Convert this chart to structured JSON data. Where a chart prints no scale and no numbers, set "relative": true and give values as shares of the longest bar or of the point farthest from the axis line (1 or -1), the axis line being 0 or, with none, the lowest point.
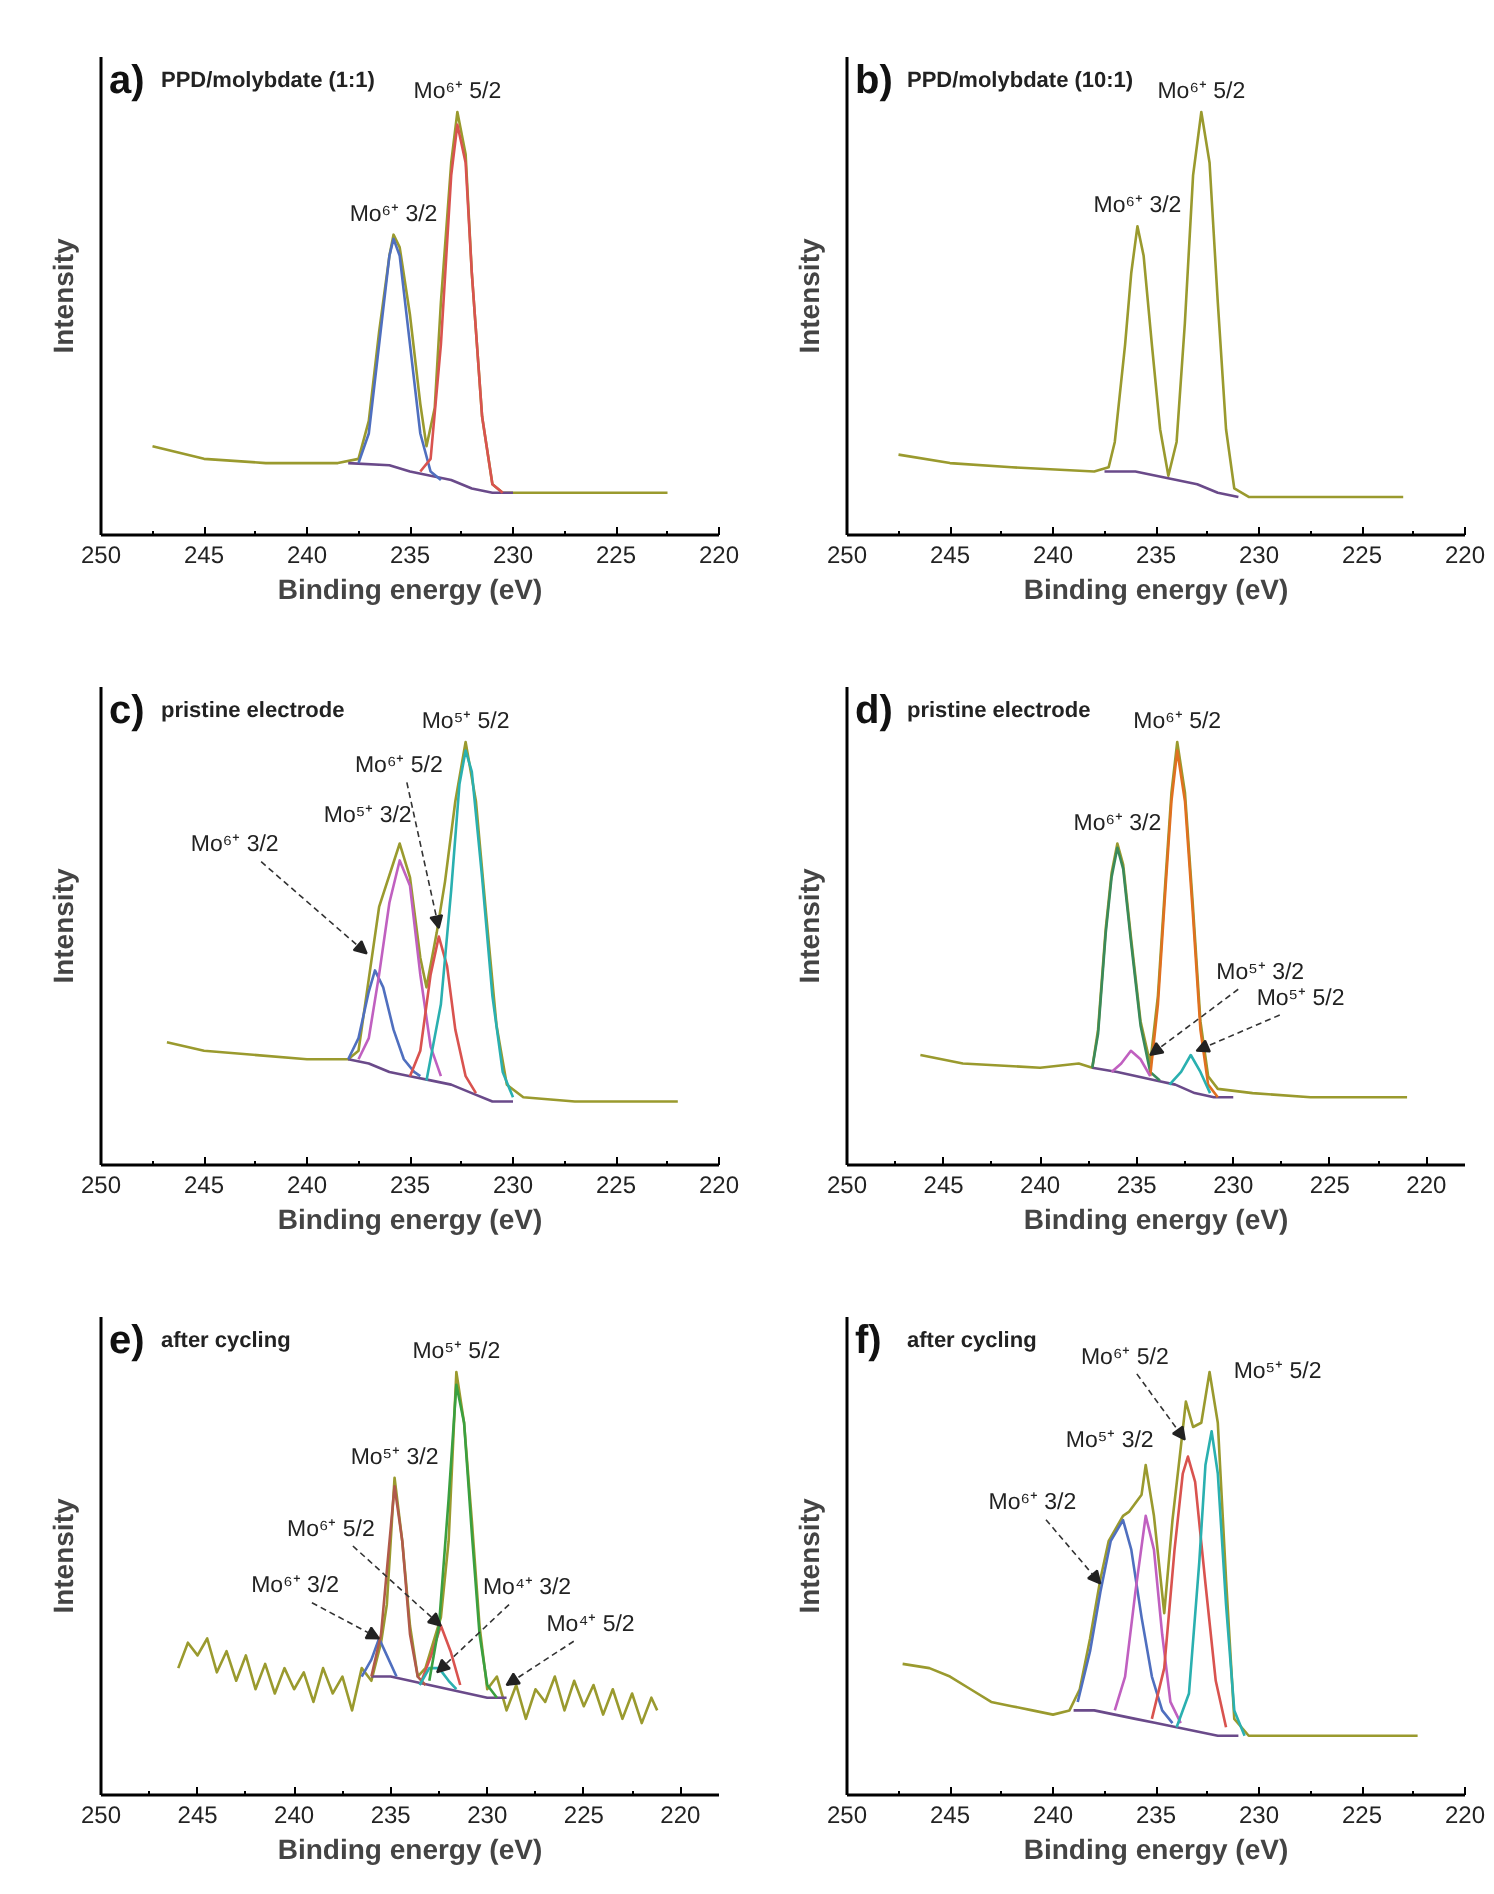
{
  "chart_data": [
    {
      "type": "line",
      "title": "a)",
      "subtitle": "PPD/molybdate (1:1)",
      "xlabel": "Binding energy (eV)",
      "ylabel": "Intensity",
      "xlim": [
        250,
        220
      ],
      "xticks": [
        250,
        245,
        240,
        235,
        230,
        225,
        220
      ],
      "relative": true,
      "tick_labels": "x",
      "series": [
        {
          "color": "#9a9a2e",
          "x": [
            247.5,
            245,
            242,
            238.5,
            237.5,
            237,
            236.5,
            236,
            235.8,
            235.5,
            235,
            234.5,
            234.2,
            233.8,
            233.5,
            233,
            232.7,
            232.3,
            232,
            231.5,
            231,
            230.5,
            228,
            225,
            222.5
          ],
          "values": [
            0.21,
            0.18,
            0.17,
            0.17,
            0.18,
            0.27,
            0.48,
            0.66,
            0.71,
            0.68,
            0.52,
            0.31,
            0.21,
            0.3,
            0.55,
            0.88,
            1.0,
            0.9,
            0.62,
            0.28,
            0.12,
            0.1,
            0.1,
            0.1,
            0.1
          ]
        },
        {
          "color": "#6a4a8a",
          "x": [
            238,
            236,
            235,
            234,
            233,
            232,
            231,
            230
          ],
          "values": [
            0.17,
            0.165,
            0.15,
            0.14,
            0.13,
            0.11,
            0.1,
            0.1
          ]
        },
        {
          "color": "#4f6fbf",
          "x": [
            237.5,
            237,
            236.5,
            236,
            235.8,
            235.5,
            235,
            234.5,
            234,
            233.5
          ],
          "values": [
            0.17,
            0.24,
            0.45,
            0.66,
            0.7,
            0.66,
            0.45,
            0.24,
            0.15,
            0.13
          ]
        },
        {
          "color": "#d9534f",
          "x": [
            234.5,
            234,
            233.5,
            233,
            232.7,
            232.3,
            232,
            231.5,
            231,
            230.5
          ],
          "values": [
            0.15,
            0.18,
            0.45,
            0.85,
            0.97,
            0.88,
            0.62,
            0.28,
            0.12,
            0.1
          ]
        }
      ],
      "annotations": [
        {
          "text": "Mo⁶⁺ 5/2",
          "x": 232.7,
          "y": 1.0
        },
        {
          "text": "Mo⁶⁺ 3/2",
          "x": 235.8,
          "y": 0.71
        }
      ]
    },
    {
      "type": "line",
      "title": "b)",
      "subtitle": "PPD/molybdate (10:1)",
      "xlabel": "Binding energy (eV)",
      "ylabel": "Intensity",
      "xlim": [
        250,
        220
      ],
      "xticks": [
        250,
        245,
        240,
        235,
        230,
        225,
        220
      ],
      "relative": true,
      "tick_labels": "x",
      "series": [
        {
          "color": "#9a9a2e",
          "x": [
            247.5,
            245,
            242,
            238,
            237.3,
            237,
            236.5,
            236.2,
            235.9,
            235.6,
            235.2,
            234.8,
            234.4,
            234,
            233.6,
            233.2,
            232.8,
            232.4,
            232,
            231.6,
            231.2,
            230.5,
            228,
            225,
            223
          ],
          "values": [
            0.19,
            0.17,
            0.16,
            0.15,
            0.16,
            0.22,
            0.45,
            0.62,
            0.73,
            0.66,
            0.45,
            0.25,
            0.14,
            0.22,
            0.5,
            0.85,
            1.0,
            0.88,
            0.55,
            0.25,
            0.11,
            0.09,
            0.09,
            0.09,
            0.09
          ]
        },
        {
          "color": "#6a4a8a",
          "x": [
            237.5,
            236,
            235,
            234,
            233,
            232,
            231
          ],
          "values": [
            0.15,
            0.15,
            0.14,
            0.13,
            0.12,
            0.1,
            0.09
          ]
        }
      ],
      "annotations": [
        {
          "text": "Mo⁶⁺ 5/2",
          "x": 232.8,
          "y": 1.0
        },
        {
          "text": "Mo⁶⁺ 3/2",
          "x": 235.9,
          "y": 0.73
        }
      ]
    },
    {
      "type": "line",
      "title": "c)",
      "subtitle": "pristine electrode",
      "xlabel": "Binding energy (eV)",
      "ylabel": "Intensity",
      "xlim": [
        250,
        220
      ],
      "xticks": [
        250,
        245,
        240,
        235,
        230,
        225,
        220
      ],
      "relative": true,
      "tick_labels": "x",
      "series": [
        {
          "color": "#9a9a2e",
          "x": [
            246.8,
            245,
            240,
            238,
            237.5,
            237,
            236.5,
            235.5,
            235,
            234.5,
            234.2,
            233.7,
            233.3,
            232.8,
            232.3,
            231.8,
            231.3,
            230.8,
            230.3,
            229.5,
            227,
            225,
            222
          ],
          "values": [
            0.29,
            0.27,
            0.25,
            0.25,
            0.27,
            0.44,
            0.61,
            0.76,
            0.68,
            0.49,
            0.42,
            0.55,
            0.67,
            0.86,
            1.0,
            0.86,
            0.59,
            0.33,
            0.19,
            0.16,
            0.15,
            0.15,
            0.15
          ]
        },
        {
          "color": "#6a4a8a",
          "x": [
            238,
            237,
            236,
            235,
            234,
            233,
            232,
            231,
            230
          ],
          "values": [
            0.25,
            0.24,
            0.22,
            0.21,
            0.2,
            0.19,
            0.17,
            0.15,
            0.15
          ]
        },
        {
          "color": "#4f6fbf",
          "x": [
            238,
            237.5,
            237,
            236.7,
            236.3,
            235.8,
            235.3,
            234.8,
            234.5
          ],
          "values": [
            0.25,
            0.3,
            0.41,
            0.46,
            0.42,
            0.32,
            0.25,
            0.22,
            0.21
          ]
        },
        {
          "color": "#c060c0",
          "x": [
            237.5,
            237,
            236.5,
            236,
            235.5,
            235,
            234.5,
            234,
            233.5
          ],
          "values": [
            0.25,
            0.3,
            0.45,
            0.62,
            0.72,
            0.66,
            0.45,
            0.28,
            0.21
          ]
        },
        {
          "color": "#d9534f",
          "x": [
            235,
            234.5,
            234,
            233.6,
            233.2,
            232.8,
            232.3,
            231.8
          ],
          "values": [
            0.21,
            0.27,
            0.45,
            0.54,
            0.47,
            0.32,
            0.21,
            0.17
          ]
        },
        {
          "color": "#2ab0b0",
          "x": [
            234.2,
            233.5,
            233,
            232.6,
            232.3,
            232,
            231.5,
            231,
            230.5,
            230
          ],
          "values": [
            0.2,
            0.38,
            0.65,
            0.9,
            0.98,
            0.93,
            0.68,
            0.4,
            0.22,
            0.16
          ]
        }
      ],
      "annotations": [
        {
          "text": "Mo⁵⁺ 5/2",
          "x": 232.3,
          "y": 1.0
        },
        {
          "text": "Mo⁶⁺ 5/2",
          "x": 233.6,
          "y": 0.56
        },
        {
          "text": "Mo⁵⁺ 3/2",
          "x": 235.5,
          "y": 0.76
        },
        {
          "text": "Mo⁶⁺ 3/2",
          "x": 237.1,
          "y": 0.5
        }
      ]
    },
    {
      "type": "line",
      "title": "d)",
      "subtitle": "pristine electrode",
      "xlabel": "Binding energy (eV)",
      "ylabel": "Intensity",
      "xlim": [
        250,
        218
      ],
      "xticks": [
        250,
        245,
        240,
        235,
        230,
        225,
        220
      ],
      "relative": true,
      "tick_labels": "x",
      "series": [
        {
          "color": "#9a9a2e",
          "x": [
            246.2,
            244,
            240,
            238,
            237.3,
            237,
            236.6,
            236.3,
            236,
            235.7,
            235.3,
            234.8,
            234.3,
            233.9,
            233.5,
            233.2,
            232.9,
            232.5,
            232.1,
            231.7,
            231.3,
            230.8,
            229,
            226,
            223,
            221
          ],
          "values": [
            0.26,
            0.24,
            0.23,
            0.24,
            0.23,
            0.32,
            0.56,
            0.69,
            0.76,
            0.71,
            0.54,
            0.34,
            0.24,
            0.4,
            0.68,
            0.88,
            1.0,
            0.88,
            0.62,
            0.34,
            0.21,
            0.18,
            0.17,
            0.16,
            0.16,
            0.16
          ]
        },
        {
          "color": "#6a4a8a",
          "x": [
            237.3,
            236,
            235,
            234,
            233,
            232,
            231,
            230
          ],
          "values": [
            0.23,
            0.22,
            0.21,
            0.2,
            0.19,
            0.17,
            0.16,
            0.16
          ]
        },
        {
          "color": "#3a8a5a",
          "x": [
            237.3,
            237,
            236.6,
            236.3,
            236,
            235.7,
            235.3,
            234.8,
            234.3,
            233.8
          ],
          "values": [
            0.23,
            0.31,
            0.55,
            0.68,
            0.75,
            0.7,
            0.53,
            0.33,
            0.22,
            0.2
          ]
        },
        {
          "color": "#e07020",
          "x": [
            234.3,
            233.9,
            233.5,
            233.2,
            232.9,
            232.5,
            232.1,
            231.7,
            231.3,
            230.8
          ],
          "values": [
            0.21,
            0.38,
            0.66,
            0.86,
            0.98,
            0.86,
            0.6,
            0.32,
            0.19,
            0.16
          ]
        },
        {
          "color": "#c060c0",
          "x": [
            236.3,
            235.8,
            235.3,
            234.8,
            234.3
          ],
          "values": [
            0.22,
            0.24,
            0.27,
            0.25,
            0.21
          ]
        },
        {
          "color": "#2ab0b0",
          "x": [
            233.3,
            232.7,
            232.2,
            231.7,
            231.2
          ],
          "values": [
            0.19,
            0.22,
            0.26,
            0.22,
            0.17
          ]
        }
      ],
      "annotations": [
        {
          "text": "Mo⁶⁺ 5/2",
          "x": 232.9,
          "y": 1.0
        },
        {
          "text": "Mo⁶⁺ 3/2",
          "x": 236.0,
          "y": 0.76
        },
        {
          "text": "Mo⁵⁺ 3/2",
          "x": 234.3,
          "y": 0.26
        },
        {
          "text": "Mo⁵⁺ 5/2",
          "x": 231.9,
          "y": 0.27
        }
      ]
    },
    {
      "type": "line",
      "title": "e)",
      "subtitle": "after cycling",
      "xlabel": "Binding energy (eV)",
      "ylabel": "Intensity",
      "xlim": [
        250,
        218
      ],
      "xticks": [
        250,
        245,
        240,
        235,
        230,
        225,
        220
      ],
      "relative": true,
      "tick_labels": "x",
      "series": [
        {
          "color": "#9a9a2e",
          "x": [
            246,
            245.5,
            245,
            244.5,
            244,
            243.5,
            243,
            242.5,
            242,
            241.5,
            241,
            240.5,
            240,
            239.5,
            239,
            238.5,
            238,
            237.5,
            237,
            236.5,
            236,
            235.5,
            235.2,
            234.8,
            234.4,
            234,
            233.6,
            233.2,
            232.8,
            232.4,
            232,
            231.6,
            231.2,
            230.8,
            230.4,
            230,
            229.5,
            229,
            228.5,
            228,
            227.5,
            227,
            226.5,
            226,
            225.5,
            225,
            224.5,
            224,
            223.5,
            223,
            222.5,
            222,
            221.5,
            221.2
          ],
          "values": [
            0.3,
            0.36,
            0.33,
            0.37,
            0.29,
            0.34,
            0.27,
            0.33,
            0.25,
            0.31,
            0.24,
            0.3,
            0.25,
            0.29,
            0.22,
            0.3,
            0.24,
            0.28,
            0.2,
            0.3,
            0.27,
            0.36,
            0.45,
            0.75,
            0.6,
            0.4,
            0.28,
            0.3,
            0.36,
            0.42,
            0.6,
            1.0,
            0.88,
            0.65,
            0.4,
            0.25,
            0.28,
            0.2,
            0.26,
            0.18,
            0.25,
            0.22,
            0.28,
            0.2,
            0.27,
            0.21,
            0.26,
            0.19,
            0.25,
            0.18,
            0.24,
            0.17,
            0.23,
            0.2
          ]
        },
        {
          "color": "#6a4a8a",
          "x": [
            236,
            235,
            234,
            233,
            232,
            231,
            230,
            229
          ],
          "values": [
            0.28,
            0.28,
            0.27,
            0.26,
            0.25,
            0.24,
            0.23,
            0.23
          ]
        },
        {
          "color": "#4f6fbf",
          "x": [
            236.5,
            236,
            235.6,
            235.2,
            234.7
          ],
          "values": [
            0.28,
            0.32,
            0.37,
            0.33,
            0.28
          ]
        },
        {
          "color": "#b05a4a",
          "x": [
            236,
            235.5,
            235.1,
            234.8,
            234.4,
            234,
            233.6,
            233.2
          ],
          "values": [
            0.28,
            0.38,
            0.58,
            0.73,
            0.6,
            0.38,
            0.28,
            0.26
          ]
        },
        {
          "color": "#d9534f",
          "x": [
            233.4,
            232.9,
            232.4,
            231.9,
            231.4
          ],
          "values": [
            0.27,
            0.33,
            0.4,
            0.34,
            0.26
          ]
        },
        {
          "color": "#2ab0b0",
          "x": [
            233.5,
            233,
            232.5,
            232,
            231.6
          ],
          "values": [
            0.26,
            0.3,
            0.3,
            0.27,
            0.25
          ]
        },
        {
          "color": "#3aa040",
          "x": [
            233,
            232.5,
            232,
            231.6,
            231.2,
            230.8,
            230.4,
            230,
            229.5
          ],
          "values": [
            0.27,
            0.4,
            0.7,
            0.97,
            0.88,
            0.62,
            0.38,
            0.26,
            0.23
          ]
        }
      ],
      "annotations": [
        {
          "text": "Mo⁵⁺ 5/2",
          "x": 231.6,
          "y": 1.0
        },
        {
          "text": "Mo⁵⁺ 3/2",
          "x": 234.8,
          "y": 0.75
        },
        {
          "text": "Mo⁶⁺ 5/2",
          "x": 232.4,
          "y": 0.4
        },
        {
          "text": "Mo⁶⁺ 3/2",
          "x": 235.6,
          "y": 0.37
        },
        {
          "text": "Mo⁴⁺ 3/2",
          "x": 232.6,
          "y": 0.29
        },
        {
          "text": "Mo⁴⁺ 5/2",
          "x": 229.0,
          "y": 0.26
        }
      ]
    },
    {
      "type": "line",
      "title": "f)",
      "subtitle": "after cycling",
      "xlabel": "Binding energy (eV)",
      "ylabel": "Intensity",
      "xlim": [
        250,
        220
      ],
      "xticks": [
        250,
        245,
        240,
        235,
        230,
        225,
        220
      ],
      "relative": true,
      "tick_labels": "x",
      "series": [
        {
          "color": "#9a9a2e",
          "x": [
            247.3,
            246,
            245,
            244,
            243,
            242,
            241,
            240,
            239.2,
            238.7,
            238.2,
            237.7,
            237.3,
            236.6,
            236.3,
            235.7,
            235.5,
            235.1,
            234.6,
            234.2,
            233.8,
            233.55,
            233.2,
            232.8,
            232.4,
            232,
            231.6,
            231.2,
            230.5,
            228,
            225,
            222.3
          ],
          "values": [
            0.31,
            0.3,
            0.28,
            0.25,
            0.22,
            0.21,
            0.2,
            0.19,
            0.2,
            0.25,
            0.37,
            0.51,
            0.6,
            0.66,
            0.67,
            0.71,
            0.78,
            0.66,
            0.43,
            0.65,
            0.82,
            0.93,
            0.87,
            0.88,
            1.0,
            0.88,
            0.51,
            0.18,
            0.14,
            0.14,
            0.14,
            0.14
          ]
        },
        {
          "color": "#6a4a8a",
          "x": [
            239,
            238,
            237,
            236,
            235,
            234,
            233,
            232,
            231
          ],
          "values": [
            0.2,
            0.2,
            0.19,
            0.18,
            0.17,
            0.16,
            0.15,
            0.14,
            0.14
          ]
        },
        {
          "color": "#4f6fbf",
          "x": [
            238.8,
            238.2,
            237.7,
            237.2,
            236.6,
            236.2,
            235.7,
            235.2,
            234.7,
            234.2
          ],
          "values": [
            0.22,
            0.34,
            0.48,
            0.6,
            0.65,
            0.58,
            0.42,
            0.28,
            0.2,
            0.17
          ]
        },
        {
          "color": "#c060c0",
          "x": [
            237,
            236.5,
            236,
            235.5,
            235.1,
            234.7,
            234.3,
            233.8
          ],
          "values": [
            0.2,
            0.28,
            0.48,
            0.66,
            0.58,
            0.38,
            0.22,
            0.17
          ]
        },
        {
          "color": "#d9534f",
          "x": [
            235.2,
            234.6,
            234.1,
            233.7,
            233.45,
            233.1,
            232.6,
            232.1,
            231.6
          ],
          "values": [
            0.18,
            0.3,
            0.58,
            0.76,
            0.8,
            0.74,
            0.5,
            0.27,
            0.16
          ]
        },
        {
          "color": "#2ab0b0",
          "x": [
            234,
            233.4,
            232.9,
            232.6,
            232.3,
            232,
            231.6,
            231.2,
            230.7
          ],
          "values": [
            0.16,
            0.24,
            0.55,
            0.78,
            0.86,
            0.76,
            0.45,
            0.2,
            0.14
          ]
        }
      ],
      "annotations": [
        {
          "text": "Mo⁶⁺ 5/2",
          "x": 233.6,
          "y": 0.84
        },
        {
          "text": "Mo⁵⁺ 5/2",
          "x": 232.4,
          "y": 1.0
        },
        {
          "text": "Mo⁵⁺ 3/2",
          "x": 235.5,
          "y": 0.78
        },
        {
          "text": "Mo⁶⁺ 3/2",
          "x": 237.7,
          "y": 0.5
        }
      ]
    }
  ]
}
